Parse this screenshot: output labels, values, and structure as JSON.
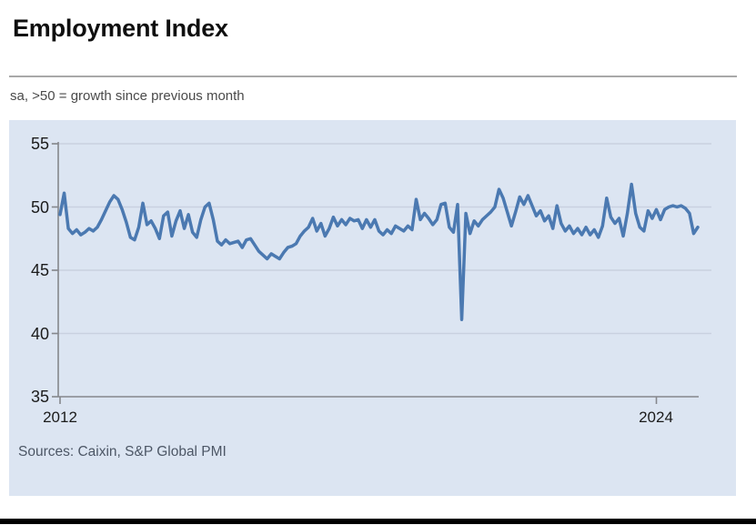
{
  "header": {
    "title": "Employment Index",
    "subtitle": "sa, >50 = growth since previous month"
  },
  "footer": {
    "sources": "Sources: Caixin, S&P Global PMI"
  },
  "chart_data": {
    "type": "line",
    "title": "Employment Index",
    "subtitle": "sa, >50 = growth since previous month",
    "frequency": "monthly",
    "x_start": "2012-01",
    "x_end": "2024-11",
    "ylim": [
      35,
      55
    ],
    "grid": true,
    "legend": false,
    "y_tick_labels": [
      "55",
      "50",
      "45",
      "40",
      "35"
    ],
    "x_tick_labels": [
      "2012",
      "2024"
    ],
    "line_color": "#4b79b1",
    "panel_bg": "#dce5f2",
    "sources": "Sources: Caixin, S&P Global PMI",
    "series": [
      {
        "name": "Employment Index",
        "values": [
          49.4,
          51.1,
          48.3,
          47.9,
          48.2,
          47.8,
          48.0,
          48.3,
          48.1,
          48.4,
          49.0,
          49.7,
          50.4,
          50.9,
          50.6,
          49.8,
          48.8,
          47.6,
          47.4,
          48.4,
          50.3,
          48.6,
          48.9,
          48.3,
          47.5,
          49.3,
          49.6,
          47.7,
          48.9,
          49.7,
          48.3,
          49.4,
          48.0,
          47.6,
          49.0,
          50.0,
          50.3,
          49.0,
          47.3,
          47.0,
          47.4,
          47.1,
          47.2,
          47.3,
          46.8,
          47.4,
          47.5,
          47.0,
          46.5,
          46.2,
          45.9,
          46.3,
          46.1,
          45.9,
          46.4,
          46.8,
          46.9,
          47.1,
          47.7,
          48.1,
          48.4,
          49.1,
          48.1,
          48.7,
          47.7,
          48.3,
          49.2,
          48.5,
          49.0,
          48.6,
          49.1,
          48.9,
          49.0,
          48.3,
          49.0,
          48.4,
          49.0,
          48.1,
          47.8,
          48.2,
          47.9,
          48.5,
          48.3,
          48.1,
          48.5,
          48.2,
          50.6,
          49.0,
          49.5,
          49.1,
          48.6,
          49.0,
          50.2,
          50.3,
          48.4,
          48.0,
          50.2,
          41.1,
          49.5,
          47.9,
          48.9,
          48.5,
          49.0,
          49.3,
          49.6,
          50.0,
          51.4,
          50.7,
          49.6,
          48.5,
          49.6,
          50.8,
          50.2,
          50.9,
          50.1,
          49.3,
          49.7,
          48.9,
          49.3,
          48.3,
          50.1,
          48.7,
          48.1,
          48.5,
          47.9,
          48.3,
          47.8,
          48.4,
          47.8,
          48.2,
          47.6,
          48.5,
          50.7,
          49.2,
          48.7,
          49.1,
          47.7,
          49.5,
          51.8,
          49.5,
          48.4,
          48.1,
          49.7,
          49.1,
          49.8,
          49.0,
          49.8,
          50.0,
          50.1,
          50.0,
          50.1,
          49.9,
          49.5,
          47.9,
          48.4
        ]
      }
    ]
  }
}
